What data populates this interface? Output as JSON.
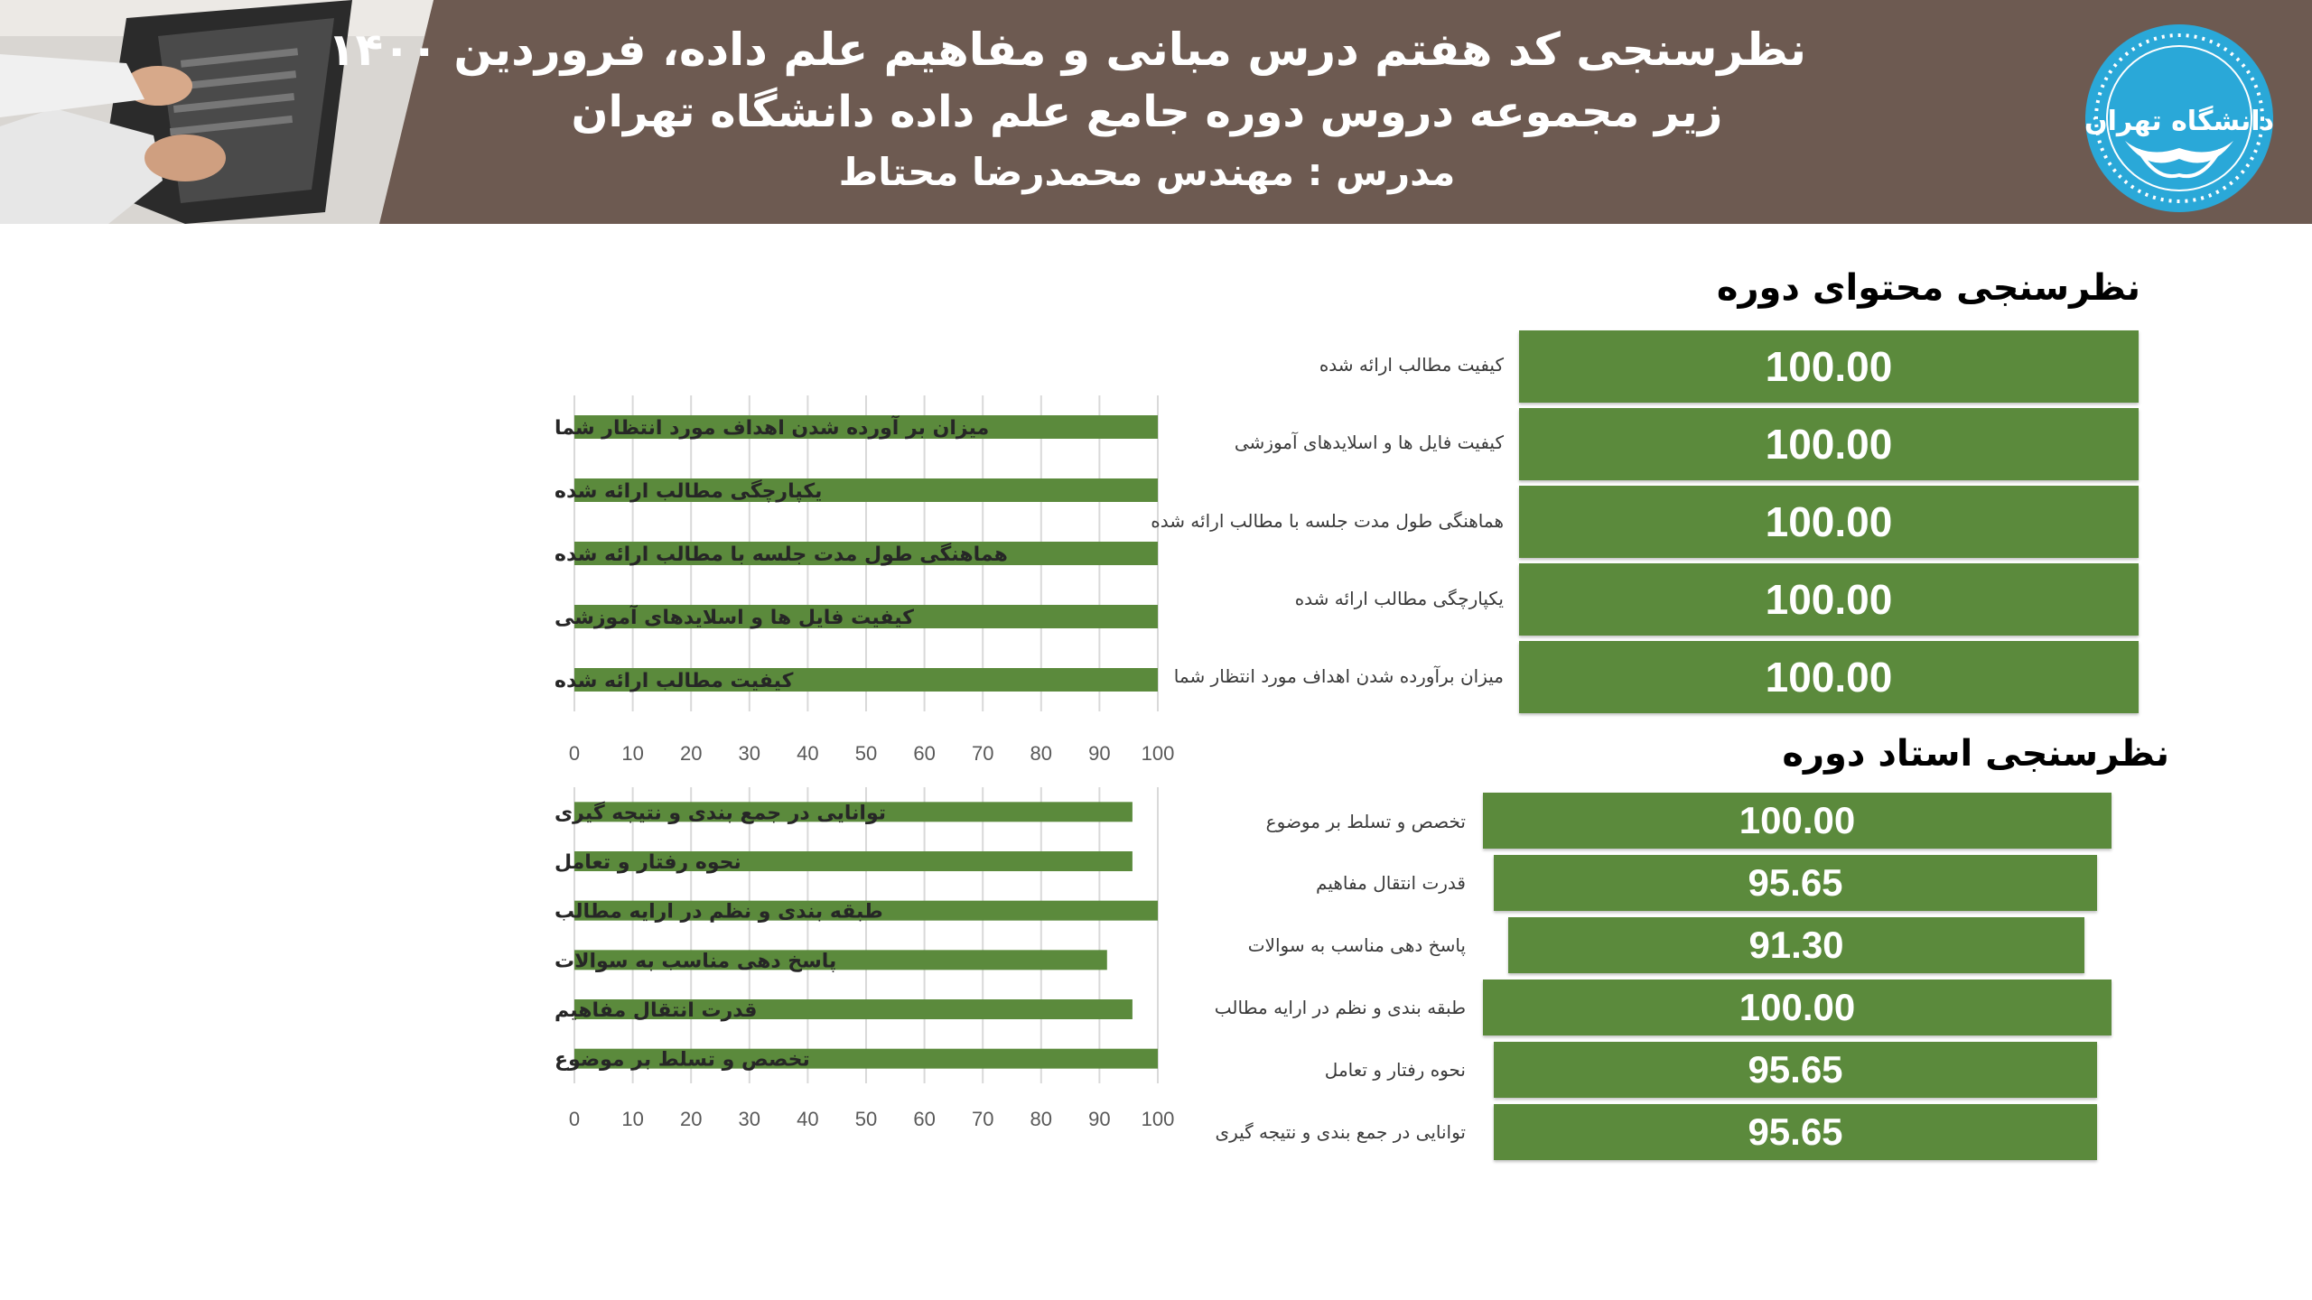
{
  "header": {
    "line1": "نظرسنجی کد هفتم درس مبانی و مفاهیم علم داده، فروردین ۱۴۰۰",
    "line2": "زیر مجموعه دروس دوره جامع علم داده دانشگاه تهران",
    "line3": "مدرس : مهندس محمدرضا محتاط",
    "logo_text": "دانشگاه تهران"
  },
  "content_section": {
    "title": "نظرسنجی محتوای دوره",
    "rows": [
      {
        "label": "کیفیت مطالب ارائه شده",
        "value": "100.00"
      },
      {
        "label": "کیفیت فایل ها و اسلایدهای آموزشی",
        "value": "100.00"
      },
      {
        "label": "هماهنگی طول مدت جلسه با مطالب ارائه شده",
        "value": "100.00"
      },
      {
        "label": "یکپارچگی مطالب ارائه شده",
        "value": "100.00"
      },
      {
        "label": "میزان برآورده شدن اهداف مورد انتظار شما",
        "value": "100.00"
      }
    ]
  },
  "teacher_section": {
    "title": "نظرسنجی استاد دوره",
    "rows": [
      {
        "label": "تخصص و تسلط بر موضوع",
        "value": "100.00"
      },
      {
        "label": "قدرت انتقال مفاهیم",
        "value": "95.65"
      },
      {
        "label": "پاسخ دهی مناسب به سوالات",
        "value": "91.30"
      },
      {
        "label": "طبقه بندی و نظم در ارایه مطالب",
        "value": "100.00"
      },
      {
        "label": "نحوه رفتار و تعامل",
        "value": "95.65"
      },
      {
        "label": "توانایی در جمع بندی و نتیجه گیری",
        "value": "95.65"
      }
    ]
  },
  "chart_data": [
    {
      "type": "bar",
      "orientation": "horizontal",
      "categories": [
        "میزان بر آورده شدن اهداف مورد انتظار شما",
        "یکپارچگی مطالب ارائه شده",
        "هماهنگی طول مدت جلسه با مطالب ارائه شده",
        "کیفیت فایل ها و اسلایدهای آموزشی",
        "کیفیت مطالب ارائه شده"
      ],
      "values": [
        100,
        100,
        100,
        100,
        100
      ],
      "xlim": [
        0,
        100
      ],
      "xticks": [
        "0",
        "10",
        "20",
        "30",
        "40",
        "50",
        "60",
        "70",
        "80",
        "90",
        "100"
      ],
      "grid": true,
      "color": "#5b8a3c"
    },
    {
      "type": "bar",
      "orientation": "horizontal",
      "categories": [
        "توانایی در جمع بندی و نتیجه گیری",
        "نحوه رفتار و تعامل",
        "طبقه بندی و نظم در ارایه مطالب",
        "پاسخ دهی مناسب به سوالات",
        "قدرت انتقال مفاهیم",
        "تخصص و تسلط بر موضوع"
      ],
      "values": [
        95.65,
        95.65,
        100,
        91.3,
        95.65,
        100
      ],
      "xlim": [
        0,
        100
      ],
      "xticks": [
        "0",
        "10",
        "20",
        "30",
        "40",
        "50",
        "60",
        "70",
        "80",
        "90",
        "100"
      ],
      "grid": true,
      "color": "#5b8a3c"
    }
  ],
  "colors": {
    "banner": "#6d5a51",
    "bar": "#5b8a3c",
    "logo": "#2aa8d8"
  }
}
